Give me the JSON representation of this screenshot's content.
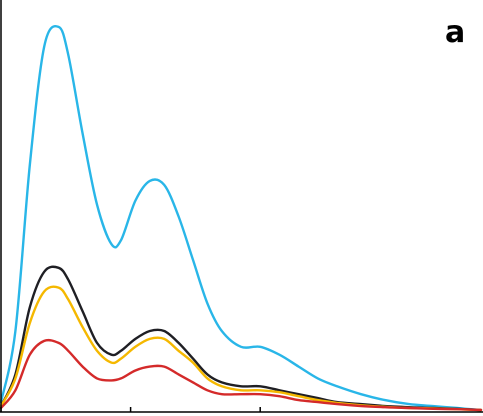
{
  "chart_data": {
    "type": "line",
    "panel_label": "a",
    "title": "",
    "xlabel": "",
    "ylabel": "",
    "xlim": [
      0,
      100
    ],
    "ylim": [
      0,
      100
    ],
    "grid": false,
    "axes": {
      "x_ticks": [
        0,
        27,
        54
      ],
      "show_left_axis": true,
      "show_bottom_axis": true
    },
    "series": [
      {
        "color": "#29b6e8",
        "x": [
          0,
          3,
          6,
          9,
          12,
          14,
          17,
          20,
          23,
          25,
          28,
          31,
          34,
          37,
          40,
          43,
          46,
          50,
          54,
          58,
          62,
          66,
          70,
          75,
          80,
          85,
          90,
          95,
          100
        ],
        "y": [
          2,
          20,
          62,
          92,
          97,
          90,
          70,
          52,
          42,
          43,
          53,
          58,
          57,
          49,
          38,
          27,
          20,
          16,
          16,
          14,
          11,
          8,
          6,
          4,
          2.5,
          1.5,
          1,
          0.5,
          0
        ]
      },
      {
        "color": "#1f1f24",
        "x": [
          0,
          3,
          6,
          9,
          12,
          14,
          17,
          20,
          23,
          25,
          28,
          31,
          34,
          37,
          40,
          43,
          46,
          50,
          54,
          58,
          62,
          66,
          70,
          75,
          80,
          85,
          90,
          95,
          100
        ],
        "y": [
          1,
          9,
          26,
          35,
          36,
          33,
          25,
          17,
          14,
          15,
          18,
          20,
          20,
          17,
          13,
          9,
          7,
          6,
          6,
          5,
          4,
          3,
          2,
          1.5,
          1,
          0.7,
          0.5,
          0.3,
          0
        ]
      },
      {
        "color": "#f5b800",
        "x": [
          0,
          3,
          6,
          9,
          12,
          14,
          17,
          20,
          23,
          25,
          28,
          31,
          34,
          37,
          40,
          43,
          46,
          50,
          54,
          58,
          62,
          66,
          70,
          75,
          80,
          85,
          90,
          95,
          100
        ],
        "y": [
          1,
          8,
          22,
          30,
          31,
          28,
          21,
          15,
          12,
          13,
          16,
          18,
          18,
          15,
          12,
          8,
          6,
          5,
          5,
          4.5,
          3.5,
          2.5,
          1.8,
          1.2,
          0.8,
          0.5,
          0.4,
          0.2,
          0
        ]
      },
      {
        "color": "#d42a2a",
        "x": [
          0,
          3,
          6,
          9,
          12,
          14,
          17,
          20,
          23,
          25,
          28,
          31,
          34,
          37,
          40,
          43,
          46,
          50,
          54,
          58,
          62,
          66,
          70,
          75,
          80,
          85,
          90,
          95,
          100
        ],
        "y": [
          0.5,
          5,
          14,
          17.5,
          17,
          15,
          11,
          8,
          7.5,
          8,
          10,
          11,
          11,
          9,
          7,
          5,
          4,
          4,
          4,
          3.5,
          2.5,
          2,
          1.5,
          1,
          0.7,
          0.5,
          0.3,
          0.2,
          0
        ]
      }
    ]
  }
}
